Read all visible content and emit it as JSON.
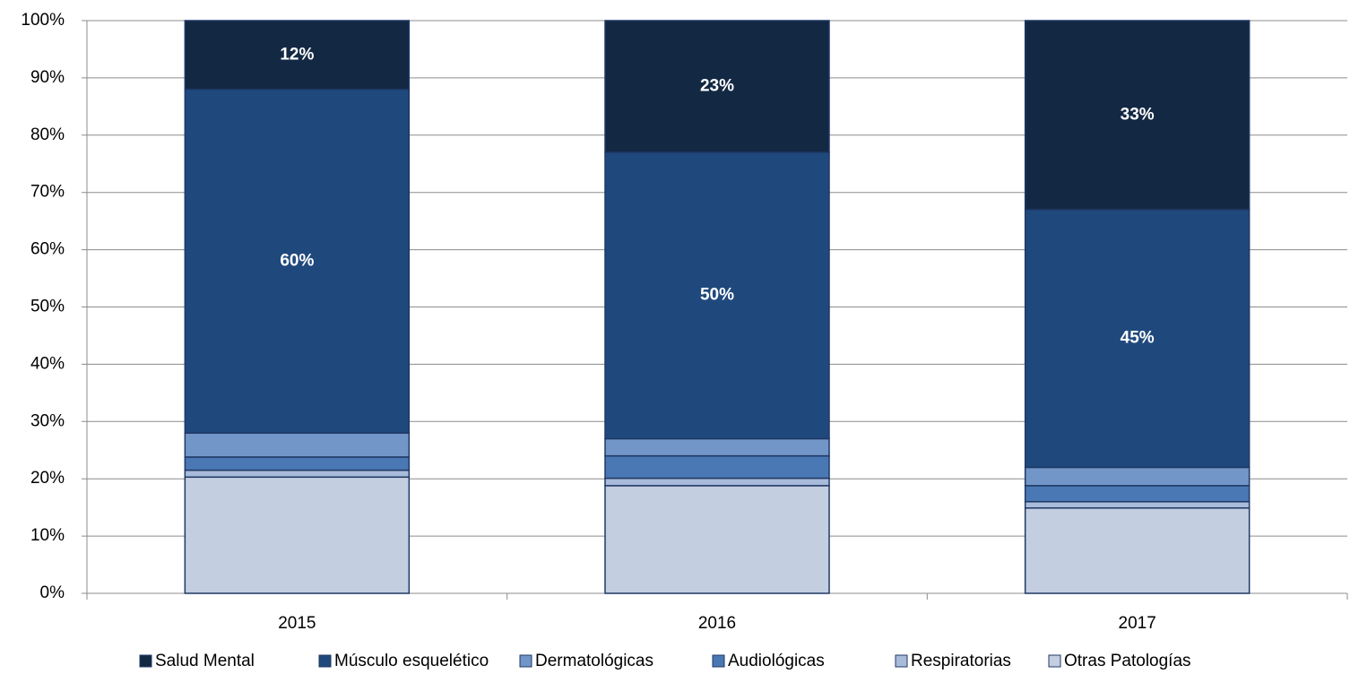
{
  "chart_data": {
    "type": "stacked_bar",
    "categories": [
      "2015",
      "2016",
      "2017"
    ],
    "series": [
      {
        "name": "Otras Patologías",
        "color": "#c4cee1",
        "values": [
          20.3,
          18.8,
          14.9
        ]
      },
      {
        "name": "Respiratorias",
        "color": "#a9bbdb",
        "values": [
          1.2,
          1.3,
          1.1
        ]
      },
      {
        "name": "Audiológicas",
        "color": "#4a78b4",
        "values": [
          2.3,
          3.9,
          2.8
        ]
      },
      {
        "name": "Dermatológicas",
        "color": "#7396c8",
        "values": [
          4.2,
          3.0,
          3.2
        ]
      },
      {
        "name": "Músculo esquelético",
        "color": "#1f497d",
        "values": [
          60,
          50,
          45
        ],
        "value_labels": [
          "60%",
          "50%",
          "45%"
        ]
      },
      {
        "name": "Salud Mental",
        "color": "#132843",
        "values": [
          12,
          23,
          33
        ],
        "value_labels": [
          "12%",
          "23%",
          "33%"
        ]
      }
    ],
    "legend_order": [
      5,
      4,
      3,
      2,
      1,
      0
    ],
    "ylim": [
      0,
      100
    ],
    "yticks": [
      {
        "value": 0,
        "label": "0%"
      },
      {
        "value": 10,
        "label": "10%"
      },
      {
        "value": 20,
        "label": "20%"
      },
      {
        "value": 30,
        "label": "30%"
      },
      {
        "value": 40,
        "label": "40%"
      },
      {
        "value": 50,
        "label": "50%"
      },
      {
        "value": 60,
        "label": "60%"
      },
      {
        "value": 70,
        "label": "70%"
      },
      {
        "value": 80,
        "label": "80%"
      },
      {
        "value": 90,
        "label": "90%"
      },
      {
        "value": 100,
        "label": "100%"
      }
    ],
    "grid": true,
    "legend": "bottom"
  }
}
